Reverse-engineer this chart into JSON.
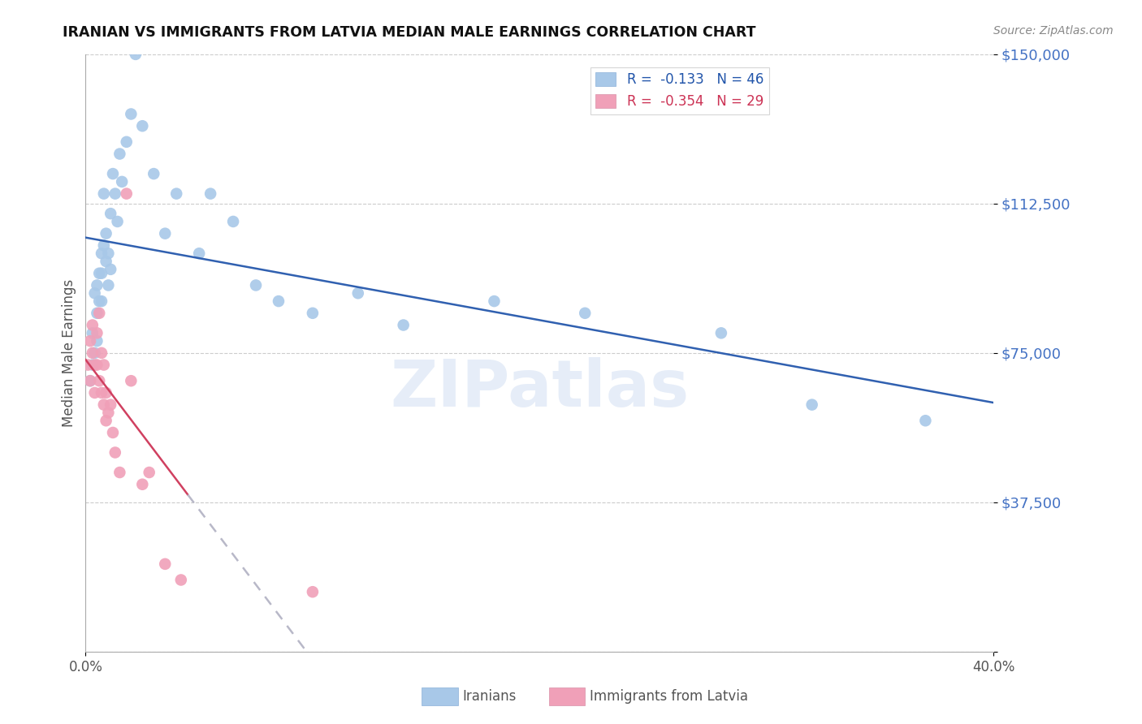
{
  "title": "IRANIAN VS IMMIGRANTS FROM LATVIA MEDIAN MALE EARNINGS CORRELATION CHART",
  "source": "Source: ZipAtlas.com",
  "ylabel": "Median Male Earnings",
  "x_min": 0.0,
  "x_max": 0.4,
  "y_min": 0,
  "y_max": 150000,
  "yticks": [
    0,
    37500,
    75000,
    112500,
    150000
  ],
  "ytick_labels": [
    "",
    "$37,500",
    "$75,000",
    "$112,500",
    "$150,000"
  ],
  "xtick_labels": [
    "0.0%",
    "40.0%"
  ],
  "watermark": "ZIPatlas",
  "legend_r1_text": "R =  -0.133   N = 46",
  "legend_r2_text": "R =  -0.354   N = 29",
  "iranians_color": "#a8c8e8",
  "latvia_color": "#f0a0b8",
  "trend_iranian_color": "#3060b0",
  "trend_latvia_color": "#d04060",
  "trend_latvia_dashed_color": "#b8b8c8",
  "iranians_x": [
    0.002,
    0.003,
    0.003,
    0.004,
    0.004,
    0.005,
    0.005,
    0.005,
    0.006,
    0.006,
    0.007,
    0.007,
    0.007,
    0.008,
    0.008,
    0.009,
    0.009,
    0.01,
    0.01,
    0.011,
    0.011,
    0.012,
    0.013,
    0.014,
    0.015,
    0.016,
    0.018,
    0.02,
    0.022,
    0.025,
    0.03,
    0.035,
    0.04,
    0.05,
    0.055,
    0.065,
    0.075,
    0.085,
    0.1,
    0.12,
    0.14,
    0.18,
    0.22,
    0.28,
    0.32,
    0.37
  ],
  "iranians_y": [
    68000,
    72000,
    80000,
    75000,
    90000,
    85000,
    92000,
    78000,
    95000,
    88000,
    100000,
    95000,
    88000,
    102000,
    115000,
    98000,
    105000,
    92000,
    100000,
    96000,
    110000,
    120000,
    115000,
    108000,
    125000,
    118000,
    128000,
    135000,
    150000,
    132000,
    120000,
    105000,
    115000,
    100000,
    115000,
    108000,
    92000,
    88000,
    85000,
    90000,
    82000,
    88000,
    85000,
    80000,
    62000,
    58000
  ],
  "latvia_x": [
    0.001,
    0.002,
    0.002,
    0.003,
    0.003,
    0.004,
    0.004,
    0.005,
    0.005,
    0.006,
    0.006,
    0.007,
    0.007,
    0.008,
    0.008,
    0.009,
    0.009,
    0.01,
    0.011,
    0.012,
    0.013,
    0.015,
    0.018,
    0.02,
    0.025,
    0.028,
    0.035,
    0.042,
    0.1
  ],
  "latvia_y": [
    72000,
    78000,
    68000,
    82000,
    75000,
    72000,
    65000,
    80000,
    72000,
    68000,
    85000,
    75000,
    65000,
    62000,
    72000,
    58000,
    65000,
    60000,
    62000,
    55000,
    50000,
    45000,
    115000,
    68000,
    42000,
    45000,
    22000,
    18000,
    15000
  ]
}
